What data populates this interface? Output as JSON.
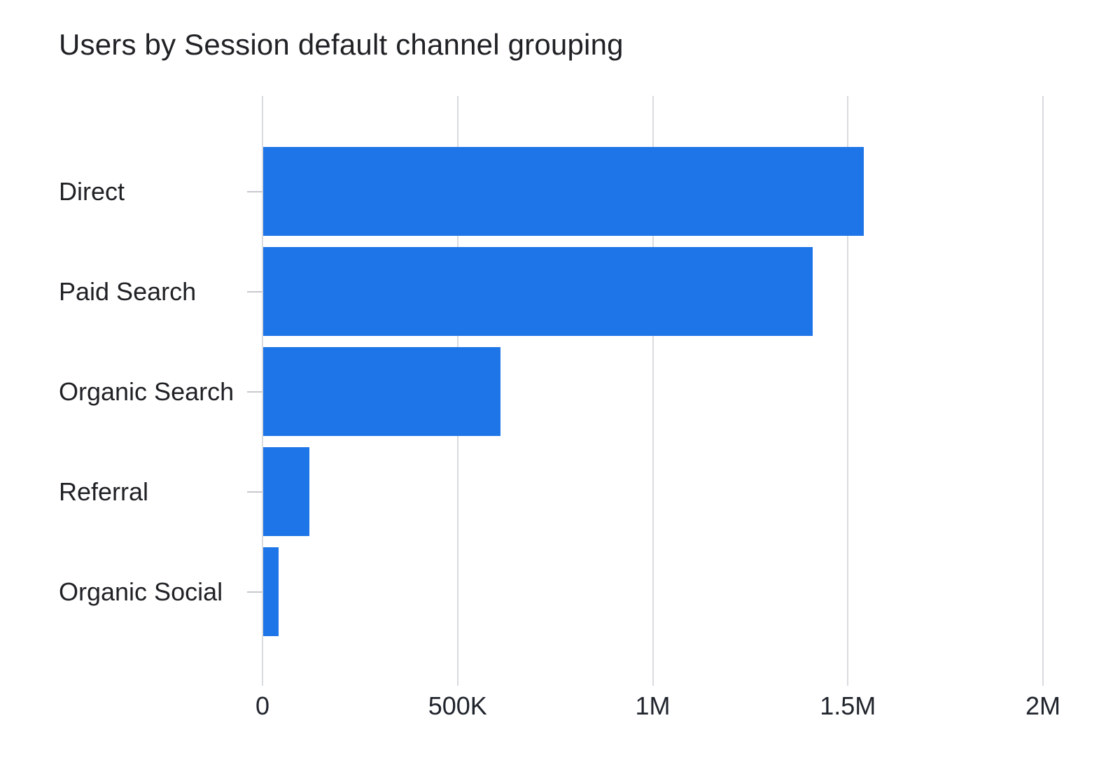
{
  "chart_data": {
    "type": "bar",
    "orientation": "horizontal",
    "title": "Users by Session default channel grouping",
    "categories": [
      "Direct",
      "Paid Search",
      "Organic Search",
      "Referral",
      "Organic Social"
    ],
    "values": [
      1540000,
      1410000,
      610000,
      120000,
      42000
    ],
    "xlabel": "",
    "ylabel": "",
    "xlim": [
      0,
      2000000
    ],
    "x_ticks": [
      {
        "value": 0,
        "label": "0"
      },
      {
        "value": 500000,
        "label": "500K"
      },
      {
        "value": 1000000,
        "label": "1M"
      },
      {
        "value": 1500000,
        "label": "1.5M"
      },
      {
        "value": 2000000,
        "label": "2M"
      }
    ],
    "grid": "vertical-only",
    "legend": "none",
    "colors": {
      "bar": "#1e75e8",
      "gridline": "#d9dbdf",
      "category_tick": "#c6c9ce",
      "title_text": "#1f2125",
      "category_text": "#1f2125",
      "axis_text": "#20242c",
      "background": "#ffffff"
    }
  }
}
